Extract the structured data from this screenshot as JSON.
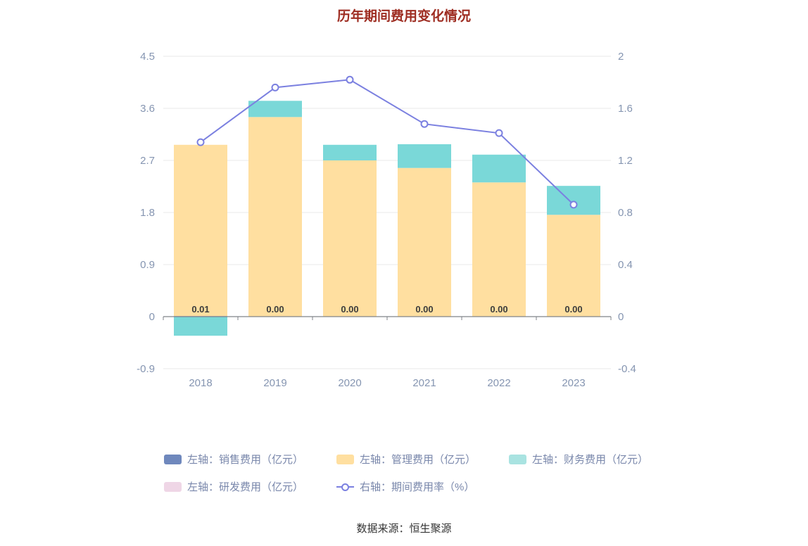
{
  "title": "历年期间费用变化情况",
  "footer": "数据来源：恒生聚源",
  "colors": {
    "title": "#9e2d22",
    "axis_text": "#8595b1",
    "grid": "#e8e8e8",
    "axis_line": "#7f8389",
    "value_label": "#3c3c3c",
    "legend_text": "#7987ab"
  },
  "chart_data": {
    "type": "bar+line",
    "title": "历年期间费用变化情况",
    "categories": [
      "2018",
      "2019",
      "2020",
      "2021",
      "2022",
      "2023"
    ],
    "series": [
      {
        "name": "左轴：销售费用（亿元）",
        "type": "bar",
        "color": "#6f88bd",
        "values": [
          0.01,
          0,
          0,
          0,
          0,
          0
        ],
        "labels": [
          "0.01",
          "0.00",
          "0.00",
          "0.00",
          "0.00",
          "0.00"
        ]
      },
      {
        "name": "左轴：管理费用（亿元）",
        "type": "bar",
        "color": "#ffdfa0",
        "values": [
          2.96,
          3.45,
          2.7,
          2.57,
          2.32,
          1.76
        ]
      },
      {
        "name": "左轴：财务费用（亿元）",
        "type": "bar",
        "color": "#7ad8d8",
        "values": [
          -0.33,
          0.28,
          0.27,
          0.41,
          0.48,
          0.5
        ]
      },
      {
        "name": "左轴：研发费用（亿元）",
        "type": "bar",
        "color": "#efd6e6",
        "values": [
          0,
          0,
          0,
          0,
          0,
          0
        ]
      },
      {
        "name": "右轴：期间费用率（%）",
        "type": "line",
        "color": "#7b80e0",
        "values": [
          1.34,
          1.76,
          1.82,
          1.48,
          1.41,
          0.86
        ]
      }
    ],
    "left_axis": {
      "min": -0.9,
      "max": 4.5,
      "ticks": [
        4.5,
        3.6,
        2.7,
        1.8,
        0.9,
        0,
        -0.9
      ]
    },
    "right_axis": {
      "min": -0.4,
      "max": 2,
      "ticks": [
        2,
        1.6,
        1.2,
        0.8,
        0.4,
        0,
        -0.4
      ]
    },
    "grid": true,
    "legend_position": "bottom"
  },
  "legend": [
    {
      "label": "左轴：销售费用（亿元）",
      "color": "#6f88bd",
      "type": "square"
    },
    {
      "label": "左轴：管理费用（亿元）",
      "color": "#ffdfa0",
      "type": "square"
    },
    {
      "label": "左轴：财务费用（亿元）",
      "color": "#a9e3e1",
      "type": "square"
    },
    {
      "label": "左轴：研发费用（亿元）",
      "color": "#efd6e6",
      "type": "square"
    },
    {
      "label": "右轴：期间费用率（%）",
      "color": "#7b80e0",
      "type": "line"
    }
  ]
}
